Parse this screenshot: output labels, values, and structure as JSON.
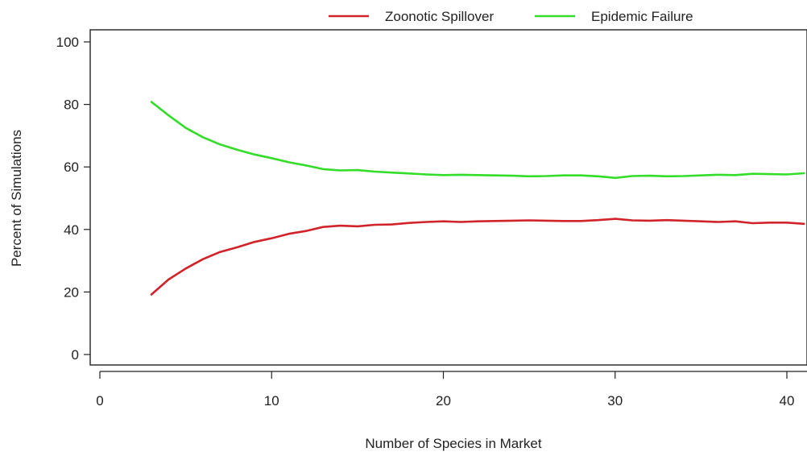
{
  "chart_data": {
    "type": "line",
    "xlabel": "Number of Species in Market",
    "ylabel": "Percent of Simulations",
    "xlim": [
      0,
      41
    ],
    "ylim": [
      0,
      100
    ],
    "x_ticks": [
      "0",
      "10",
      "20",
      "30",
      "40"
    ],
    "y_ticks": [
      "0",
      "20",
      "40",
      "60",
      "80",
      "100"
    ],
    "legend_position": "top",
    "series": [
      {
        "name": "Zoonotic Spillover",
        "color": "#d1232a",
        "x": [
          3,
          4,
          5,
          6,
          7,
          8,
          9,
          10,
          11,
          12,
          13,
          14,
          15,
          16,
          17,
          18,
          19,
          20,
          21,
          22,
          23,
          24,
          25,
          26,
          27,
          28,
          29,
          30,
          31,
          32,
          33,
          34,
          35,
          36,
          37,
          38,
          39,
          40,
          41
        ],
        "values": [
          19.2,
          24.0,
          27.5,
          30.5,
          32.8,
          34.3,
          36.0,
          37.2,
          38.6,
          39.5,
          40.8,
          41.2,
          41.0,
          41.5,
          41.6,
          42.1,
          42.4,
          42.6,
          42.4,
          42.6,
          42.7,
          42.8,
          42.9,
          42.8,
          42.7,
          42.7,
          43.0,
          43.4,
          42.9,
          42.8,
          43.0,
          42.8,
          42.6,
          42.4,
          42.6,
          42.0,
          42.2,
          42.2,
          41.8
        ]
      },
      {
        "name": "Epidemic Failure",
        "color": "#33dd2a",
        "x": [
          3,
          4,
          5,
          6,
          7,
          8,
          9,
          10,
          11,
          12,
          13,
          14,
          15,
          16,
          17,
          18,
          19,
          20,
          21,
          22,
          23,
          24,
          25,
          26,
          27,
          28,
          29,
          30,
          31,
          32,
          33,
          34,
          35,
          36,
          37,
          38,
          39,
          40,
          41
        ],
        "values": [
          80.8,
          76.5,
          72.5,
          69.5,
          67.2,
          65.5,
          64.0,
          62.8,
          61.5,
          60.5,
          59.3,
          58.9,
          59.0,
          58.5,
          58.2,
          57.9,
          57.6,
          57.4,
          57.5,
          57.4,
          57.3,
          57.2,
          57.0,
          57.1,
          57.3,
          57.3,
          57.0,
          56.5,
          57.1,
          57.2,
          57.0,
          57.1,
          57.3,
          57.5,
          57.4,
          57.8,
          57.7,
          57.6,
          58.0
        ]
      }
    ]
  }
}
